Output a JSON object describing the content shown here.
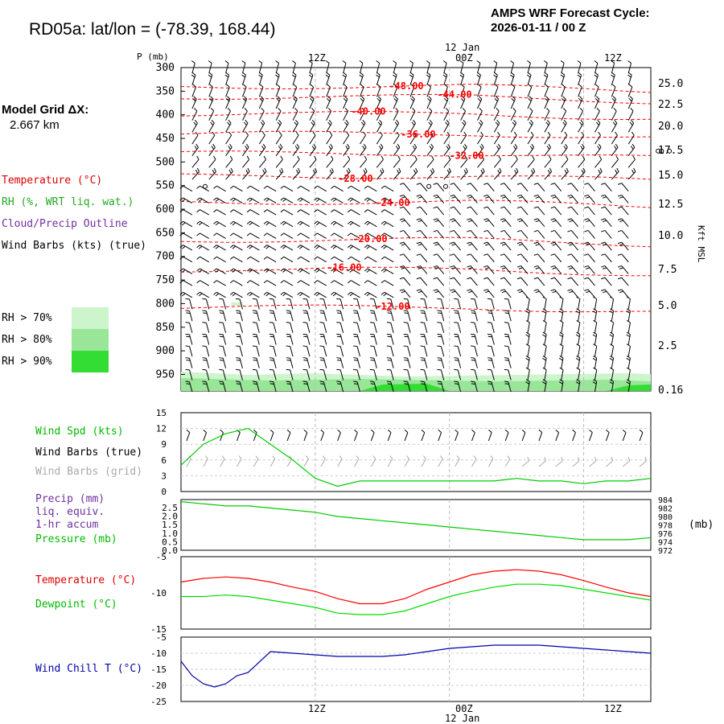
{
  "header": {
    "title": "RD05a:  lat/lon = (-78.39, 168.44)",
    "cycle_line1": "AMPS WRF Forecast Cycle:",
    "cycle_line2": "2026-01-11 / 00  Z"
  },
  "grid": {
    "line1": "Model Grid ΔX:",
    "line2": "2.667 km"
  },
  "legend": {
    "temperature": "Temperature (°C)",
    "rh": "RH (%, WRT liq. wat.)",
    "cloud": "Cloud/Precip Outline",
    "barbs": "Wind Barbs (kts) (true)",
    "rh70": "RH > 70%",
    "rh80": "RH > 80%",
    "rh90": "RH > 90%"
  },
  "colors": {
    "temperature": "#ff0000",
    "rh": "#22bb22",
    "cloud": "#7030a0",
    "wind_speed": "#00cc00",
    "barb_grid": "#aaaaaa",
    "precip": "#7030a0",
    "dewpoint": "#00dd00",
    "wind_chill": "#0000aa",
    "rh70": "#ccf5cc",
    "rh80": "#99e699",
    "rh90": "#33dd33"
  },
  "time_axis": {
    "top_labels": [
      "12Z",
      "00Z",
      "12Z"
    ],
    "date_label": "12 Jan",
    "bottom_labels": [
      "12Z",
      "00Z",
      "12Z"
    ]
  },
  "panel_labels": {
    "p_axis": "P (mb)",
    "kft": "Kft MSL",
    "wind_spd": "Wind Spd (kts)",
    "wind_barbs_true": "Wind Barbs (true)",
    "wind_barbs_grid": "Wind Barbs (grid)",
    "precip1": "Precip (mm)",
    "precip2": "liq. equiv.",
    "precip3": "1-hr accum",
    "pressure": "Pressure (mb)",
    "mb": "(mb)",
    "temperature": "Temperature (°C)",
    "dewpoint": "Dewpoint (°C)",
    "wind_chill": "Wind Chill T (°C)"
  },
  "chart_data": [
    {
      "type": "line",
      "name": "sounding-time-section",
      "y_axis_left": [
        "300",
        "350",
        "400",
        "450",
        "500",
        "550",
        "600",
        "650",
        "700",
        "750",
        "800",
        "850",
        "900",
        "950"
      ],
      "y_axis_right": [
        "25.0",
        "22.5",
        "20.0",
        "17.5",
        "15.0",
        "12.5",
        "10.0",
        "7.5",
        "5.0",
        "2.5",
        "0.16"
      ],
      "ylim": [
        300,
        985
      ],
      "temperature_contours": [
        {
          "label": "-48.00",
          "p": 340
        },
        {
          "label": "-44.00",
          "p": 362
        },
        {
          "label": "-40.00",
          "p": 398
        },
        {
          "label": "-36.00",
          "p": 440
        },
        {
          "label": "-32.00",
          "p": 482
        },
        {
          "label": "-28.00",
          "p": 530
        },
        {
          "label": "-24.00",
          "p": 585
        },
        {
          "label": "-20.00",
          "p": 665
        },
        {
          "label": "-16.00",
          "p": 728
        },
        {
          "label": "-12.00",
          "p": 808
        }
      ]
    },
    {
      "type": "line",
      "name": "wind-speed",
      "yticks": [
        "15",
        "12",
        "9",
        "6",
        "3",
        "0"
      ],
      "ylim": [
        0,
        15
      ],
      "x_hours": [
        0,
        2,
        4,
        6,
        8,
        10,
        12,
        14,
        16,
        18,
        20,
        22,
        24,
        26,
        28,
        30,
        32,
        34,
        36,
        38,
        40,
        42
      ],
      "values": [
        5,
        9,
        11,
        12,
        9,
        6,
        2.5,
        1,
        2,
        2,
        2,
        2,
        2,
        2,
        2,
        2.5,
        2,
        2,
        1.5,
        2,
        2,
        2.5
      ]
    },
    {
      "type": "line",
      "name": "pressure",
      "yticks_left": [
        "2.5",
        "2.0",
        "1.5",
        "1.0",
        "0.5",
        "0.0"
      ],
      "yticks_right": [
        "984",
        "982",
        "980",
        "978",
        "976",
        "974",
        "972"
      ],
      "ylim": [
        972,
        984
      ],
      "x_hours": [
        0,
        2,
        4,
        6,
        8,
        10,
        12,
        14,
        16,
        18,
        20,
        22,
        24,
        26,
        28,
        30,
        32,
        34,
        36,
        38,
        40,
        42
      ],
      "values": [
        983.5,
        983.0,
        982.5,
        982.5,
        982.0,
        981.5,
        981.0,
        980.0,
        979.5,
        979.0,
        978.5,
        978.0,
        977.5,
        977.0,
        976.5,
        976.0,
        975.5,
        975.0,
        974.5,
        974.5,
        974.5,
        975.0
      ]
    },
    {
      "type": "line",
      "name": "temperature-dewpoint",
      "yticks": [
        "-5",
        "-10",
        "-15"
      ],
      "ylim": [
        -15,
        -5
      ],
      "x_hours": [
        0,
        2,
        4,
        6,
        8,
        10,
        12,
        14,
        16,
        18,
        20,
        22,
        24,
        26,
        28,
        30,
        32,
        34,
        36,
        38,
        40,
        42
      ],
      "series": [
        {
          "name": "Temperature",
          "values": [
            -8.5,
            -8.0,
            -7.8,
            -8.0,
            -8.5,
            -9.2,
            -9.8,
            -10.8,
            -11.5,
            -11.5,
            -10.8,
            -9.5,
            -8.5,
            -7.5,
            -7.0,
            -6.8,
            -7.0,
            -7.5,
            -8.3,
            -9.2,
            -10.0,
            -10.5
          ]
        },
        {
          "name": "Dewpoint",
          "values": [
            -10.5,
            -10.5,
            -10.3,
            -10.5,
            -11.0,
            -11.5,
            -12.0,
            -12.8,
            -13.0,
            -13.0,
            -12.5,
            -11.5,
            -10.5,
            -9.8,
            -9.2,
            -8.8,
            -8.8,
            -9.0,
            -9.5,
            -10.0,
            -10.5,
            -11.0
          ]
        }
      ]
    },
    {
      "type": "line",
      "name": "wind-chill",
      "yticks": [
        "-5",
        "-10",
        "-15",
        "-20",
        "-25"
      ],
      "ylim": [
        -25,
        -5
      ],
      "x_hours": [
        0,
        1,
        2,
        3,
        4,
        5,
        6,
        8,
        10,
        12,
        14,
        16,
        18,
        20,
        22,
        24,
        26,
        28,
        30,
        32,
        34,
        36,
        38,
        40,
        42
      ],
      "values": [
        -12.5,
        -17,
        -19.5,
        -20.5,
        -19.5,
        -17,
        -16,
        -9.5,
        -10,
        -10.5,
        -11,
        -11,
        -11,
        -10.5,
        -9.5,
        -8.5,
        -8,
        -7.5,
        -7.5,
        -7.5,
        -8,
        -8.5,
        -9,
        -9.5,
        -10
      ]
    }
  ]
}
